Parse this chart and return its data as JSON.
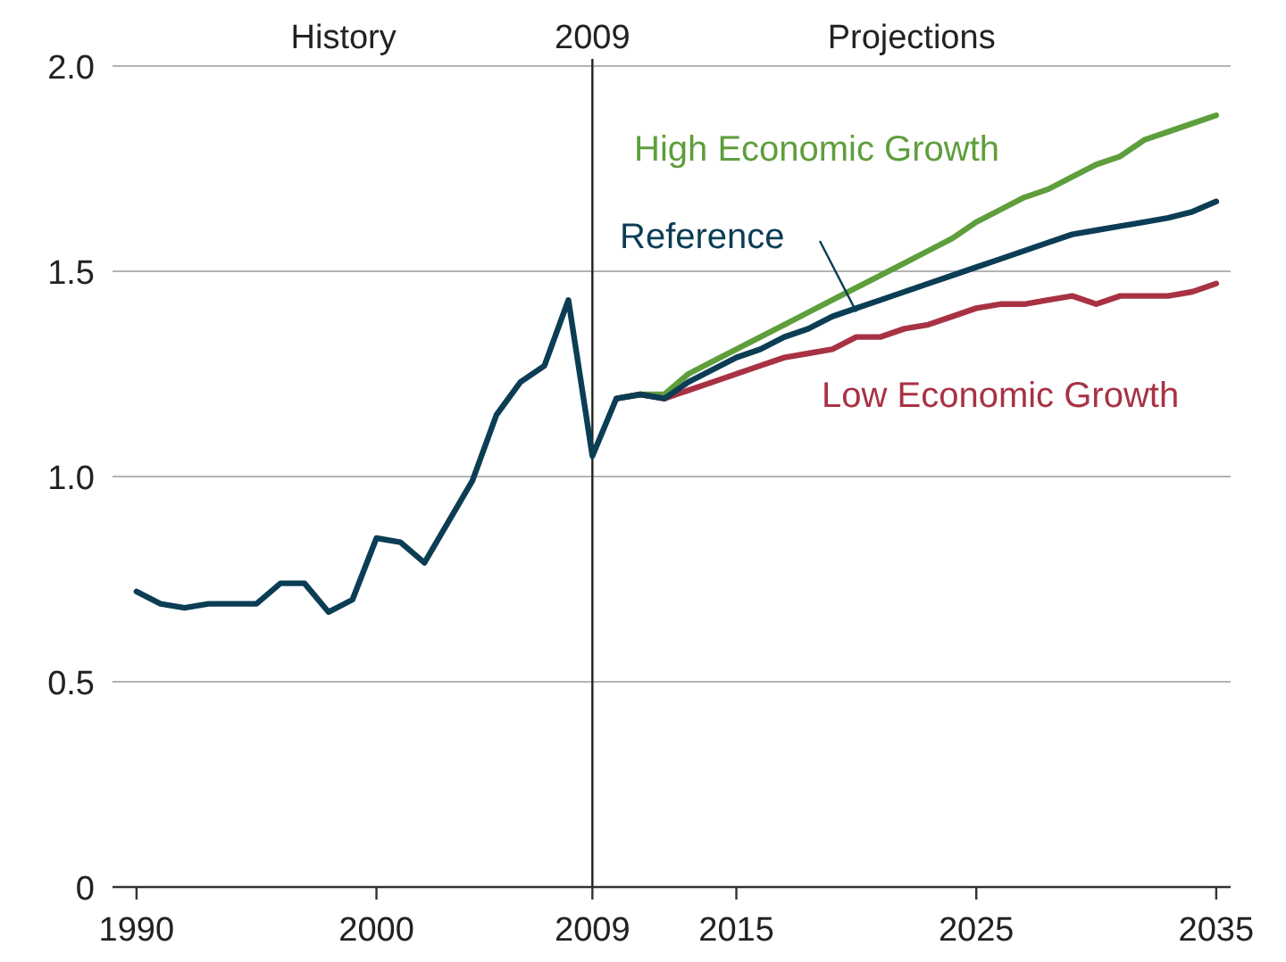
{
  "chart_data": {
    "type": "line",
    "x": [
      1990,
      1991,
      1992,
      1993,
      1994,
      1995,
      1996,
      1997,
      1998,
      1999,
      2000,
      2001,
      2002,
      2003,
      2004,
      2005,
      2006,
      2007,
      2008,
      2009,
      2010,
      2011,
      2012,
      2013,
      2014,
      2015,
      2016,
      2017,
      2018,
      2019,
      2020,
      2021,
      2022,
      2023,
      2024,
      2025,
      2026,
      2027,
      2028,
      2029,
      2030,
      2031,
      2032,
      2033,
      2034,
      2035
    ],
    "series": [
      {
        "name": "High Economic Growth",
        "color": "#5e9e3c",
        "x": [
          2010,
          2011,
          2012,
          2013,
          2014,
          2015,
          2016,
          2017,
          2018,
          2019,
          2020,
          2021,
          2022,
          2023,
          2024,
          2025,
          2026,
          2027,
          2028,
          2029,
          2030,
          2031,
          2032,
          2033,
          2034,
          2035
        ],
        "values": [
          1.19,
          1.2,
          1.2,
          1.25,
          1.28,
          1.31,
          1.34,
          1.37,
          1.4,
          1.43,
          1.46,
          1.49,
          1.52,
          1.55,
          1.58,
          1.62,
          1.65,
          1.68,
          1.7,
          1.73,
          1.76,
          1.78,
          1.82,
          1.84,
          1.86,
          1.88
        ]
      },
      {
        "name": "Low Economic Growth",
        "color": "#a83244",
        "x": [
          2010,
          2011,
          2012,
          2013,
          2014,
          2015,
          2016,
          2017,
          2018,
          2019,
          2020,
          2021,
          2022,
          2023,
          2024,
          2025,
          2026,
          2027,
          2028,
          2029,
          2030,
          2031,
          2032,
          2033,
          2034,
          2035
        ],
        "values": [
          1.19,
          1.2,
          1.19,
          1.21,
          1.23,
          1.25,
          1.27,
          1.29,
          1.3,
          1.31,
          1.34,
          1.34,
          1.36,
          1.37,
          1.39,
          1.41,
          1.42,
          1.42,
          1.43,
          1.44,
          1.42,
          1.44,
          1.44,
          1.44,
          1.45,
          1.47
        ]
      },
      {
        "name": "Reference",
        "color": "#0b3d55",
        "values": [
          0.72,
          0.69,
          0.68,
          0.69,
          0.69,
          0.69,
          0.74,
          0.74,
          0.67,
          0.7,
          0.85,
          0.84,
          0.79,
          0.89,
          0.99,
          1.15,
          1.23,
          1.27,
          1.43,
          1.05,
          1.19,
          1.2,
          1.19,
          1.23,
          1.26,
          1.29,
          1.31,
          1.34,
          1.36,
          1.39,
          1.41,
          1.43,
          1.45,
          1.47,
          1.49,
          1.51,
          1.53,
          1.55,
          1.57,
          1.59,
          1.6,
          1.61,
          1.62,
          1.63,
          1.645,
          1.67
        ]
      }
    ],
    "xlim": [
      1989,
      2035.6
    ],
    "xticks": [
      1990,
      2000,
      2009,
      2015,
      2025,
      2035
    ],
    "ylim": [
      0,
      2
    ],
    "yticks": [
      {
        "value": 0,
        "label": "0"
      },
      {
        "value": 0.5,
        "label": "0.5"
      },
      {
        "value": 1,
        "label": "1.0"
      },
      {
        "value": 1.5,
        "label": "1.5"
      },
      {
        "value": 2,
        "label": "2.0"
      }
    ],
    "grid": "y",
    "marker": "none",
    "line_style": "solid",
    "ref_lines": [
      {
        "axis": "x",
        "value": 2009,
        "label": "2009",
        "color": "#222222"
      }
    ],
    "annotations": [
      "History",
      "Projections"
    ]
  }
}
